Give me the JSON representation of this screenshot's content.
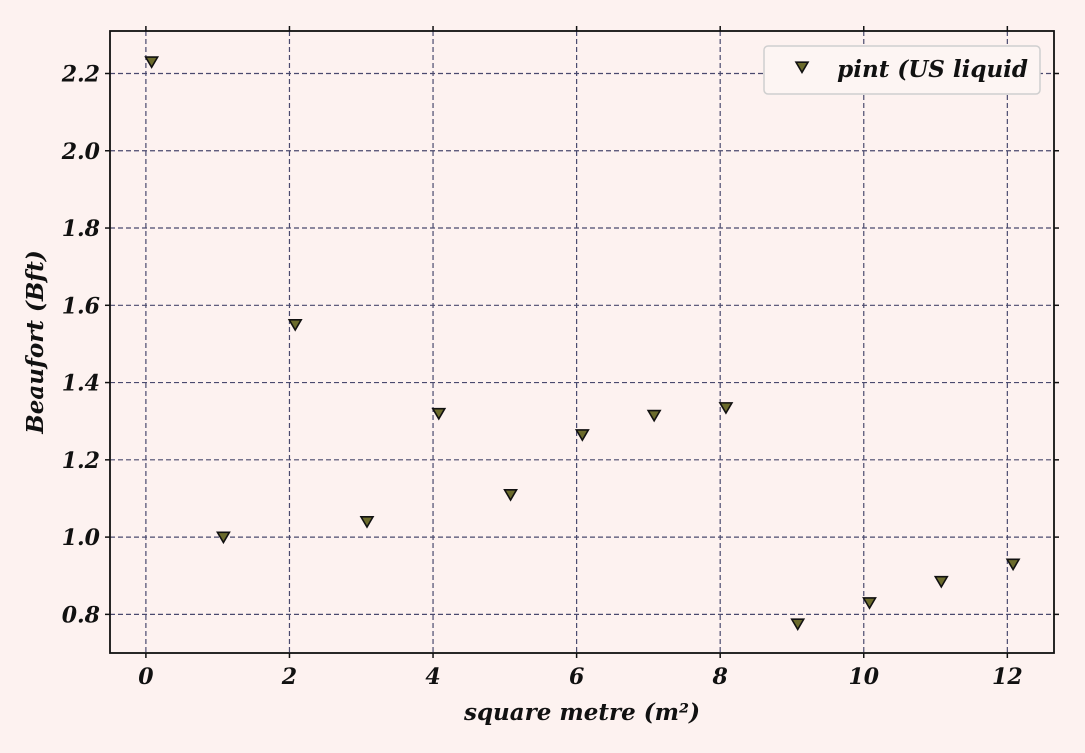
{
  "chart_data": {
    "type": "scatter",
    "xlabel": "square metre (m²)",
    "ylabel": "Beaufort (Bft)",
    "xlim": [
      -0.5,
      12.65
    ],
    "ylim": [
      0.7,
      2.31
    ],
    "xticks": [
      0,
      2,
      4,
      6,
      8,
      10,
      12
    ],
    "xtick_labels": [
      "0",
      "2",
      "4",
      "6",
      "8",
      "10",
      "12"
    ],
    "yticks": [
      0.8,
      1.0,
      1.2,
      1.4,
      1.6,
      1.8,
      2.0,
      2.2
    ],
    "ytick_labels": [
      "0.8",
      "1.0",
      "1.2",
      "1.4",
      "1.6",
      "1.8",
      "2.0",
      "2.2"
    ],
    "grid": true,
    "legend_position": "top-right",
    "marker": "triangle-down",
    "colors": {
      "marker_fill": "#6b6b2c",
      "marker_edge": "#111111",
      "grid": "#4a4a6e",
      "background": "#fdf2f0"
    },
    "series": [
      {
        "name": "pint (US liquid",
        "x": [
          0.08,
          1.08,
          2.08,
          3.08,
          4.08,
          5.08,
          6.08,
          7.08,
          8.08,
          9.08,
          10.08,
          11.08,
          12.08
        ],
        "y": [
          2.23,
          1.0,
          1.55,
          1.04,
          1.32,
          1.11,
          1.265,
          1.315,
          1.335,
          0.775,
          0.83,
          0.885,
          0.93
        ]
      }
    ]
  }
}
